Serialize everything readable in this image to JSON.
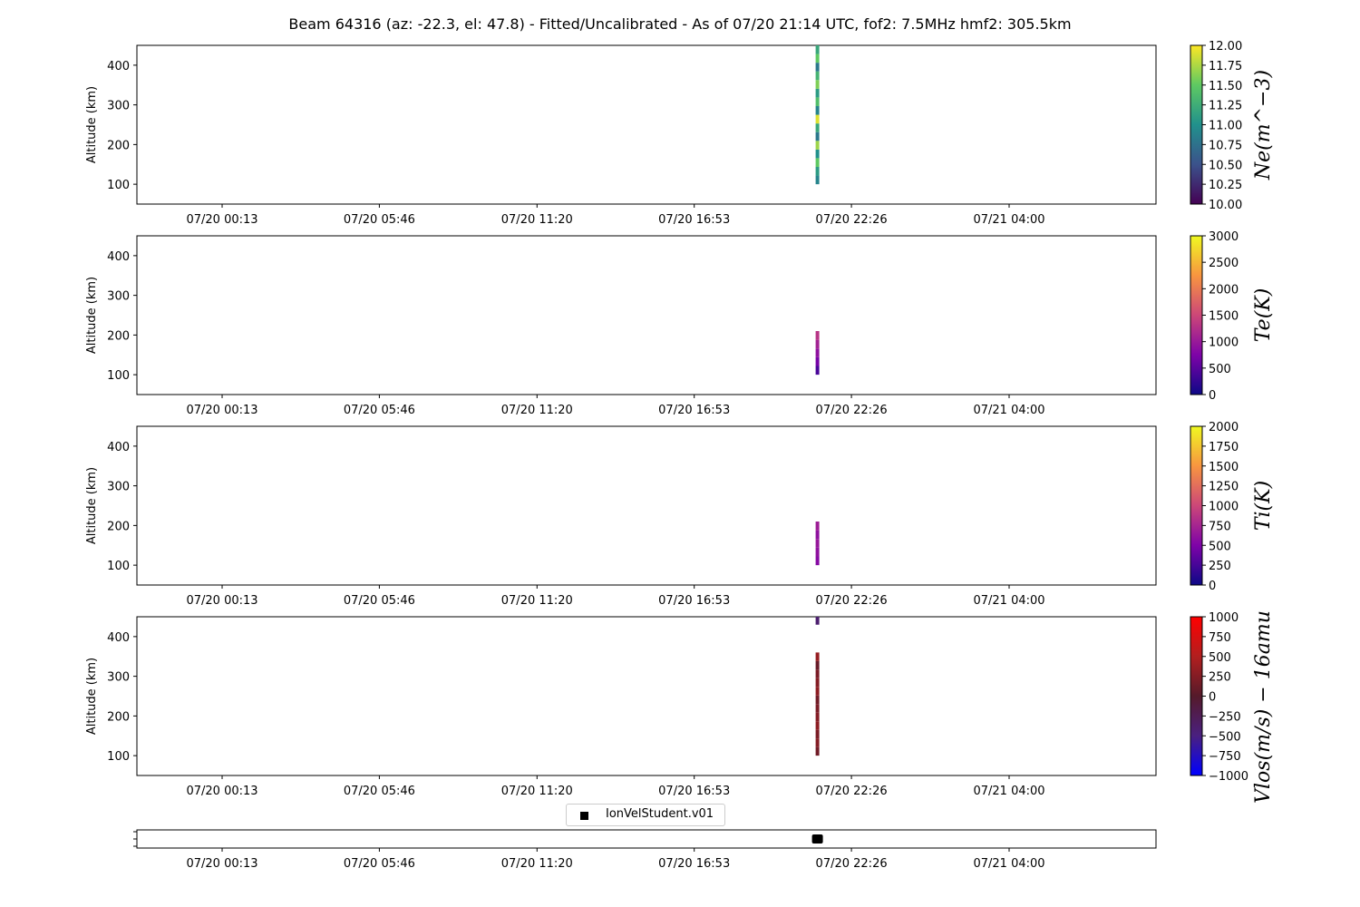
{
  "figure": {
    "title": "Beam 64316 (az: -22.3, el: 47.8) - Fitted/Uncalibrated - As of 07/20 21:14 UTC, fof2: 7.5MHz  hmf2: 305.5km"
  },
  "chart_data": [
    {
      "type": "heatmap",
      "ylabel": "Altitude (km)",
      "yticks": [
        100,
        200,
        300,
        400
      ],
      "ylim": [
        50,
        450
      ],
      "xticks": [
        "07/20 00:13",
        "07/20 05:46",
        "07/20 11:20",
        "07/20 16:53",
        "07/20 22:26",
        "07/21 04:00"
      ],
      "colorbar": {
        "label": "Ne(m^-3)",
        "range": [
          10.0,
          12.0
        ],
        "ticks": [
          "10.00",
          "10.25",
          "10.50",
          "10.75",
          "11.00",
          "11.25",
          "11.50",
          "11.75",
          "12.00"
        ],
        "colors": [
          "#440154",
          "#3b528b",
          "#21918c",
          "#5ec962",
          "#fde725"
        ]
      },
      "data_time": "07/20 21:14",
      "columns": [
        {
          "alt": [
            100,
            450
          ],
          "values": [
            10.9,
            11.1,
            11.5,
            11.0,
            11.7,
            10.8,
            11.2,
            11.9,
            10.9,
            11.4,
            11.1,
            11.6,
            11.3,
            10.8,
            11.5,
            11.2
          ]
        }
      ]
    },
    {
      "type": "heatmap",
      "ylabel": "Altitude (km)",
      "yticks": [
        100,
        200,
        300,
        400
      ],
      "ylim": [
        50,
        450
      ],
      "xticks": [
        "07/20 00:13",
        "07/20 05:46",
        "07/20 11:20",
        "07/20 16:53",
        "07/20 22:26",
        "07/21 04:00"
      ],
      "colorbar": {
        "label": "Te(K)",
        "range": [
          0,
          3000
        ],
        "ticks": [
          "0",
          "500",
          "1000",
          "1500",
          "2000",
          "2500",
          "3000"
        ],
        "colors": [
          "#0d0887",
          "#7e03a8",
          "#cc4778",
          "#f89540",
          "#f0f921"
        ]
      },
      "data_time": "07/20 21:14",
      "columns": [
        {
          "alt": [
            100,
            210
          ],
          "values": [
            400,
            700,
            900,
            1100,
            1300
          ]
        }
      ]
    },
    {
      "type": "heatmap",
      "ylabel": "Altitude (km)",
      "yticks": [
        100,
        200,
        300,
        400
      ],
      "ylim": [
        50,
        450
      ],
      "xticks": [
        "07/20 00:13",
        "07/20 05:46",
        "07/20 11:20",
        "07/20 16:53",
        "07/20 22:26",
        "07/21 04:00"
      ],
      "colorbar": {
        "label": "Ti(K)",
        "range": [
          0,
          2000
        ],
        "ticks": [
          "0",
          "250",
          "500",
          "750",
          "1000",
          "1250",
          "1500",
          "1750",
          "2000"
        ],
        "colors": [
          "#0d0887",
          "#7e03a8",
          "#cc4778",
          "#f89540",
          "#f0f921"
        ]
      },
      "data_time": "07/20 21:14",
      "columns": [
        {
          "alt": [
            100,
            210
          ],
          "values": [
            550,
            600,
            650,
            600,
            700
          ]
        }
      ]
    },
    {
      "type": "heatmap",
      "ylabel": "Altitude (km)",
      "yticks": [
        100,
        200,
        300,
        400
      ],
      "ylim": [
        50,
        450
      ],
      "xticks": [
        "07/20 00:13",
        "07/20 05:46",
        "07/20 11:20",
        "07/20 16:53",
        "07/20 22:26",
        "07/21 04:00"
      ],
      "colorbar": {
        "label": "Vlos(m/s) - 16amu",
        "range": [
          -1000,
          1000
        ],
        "ticks": [
          "-1000",
          "-750",
          "-500",
          "-250",
          "0",
          "250",
          "500",
          "750",
          "1000"
        ],
        "colors": [
          "#0000ff",
          "#4a2080",
          "#551a2a",
          "#b21f1f",
          "#ff0000"
        ]
      },
      "data_time": "07/20 21:14",
      "columns": [
        {
          "alt": [
            100,
            360
          ],
          "values": [
            150,
            250,
            200,
            300,
            250,
            200,
            150,
            300,
            250,
            200,
            100,
            350
          ]
        },
        {
          "alt": [
            430,
            450
          ],
          "values": [
            -400
          ]
        }
      ]
    },
    {
      "type": "scatter",
      "xticks": [
        "07/20 00:13",
        "07/20 05:46",
        "07/20 11:20",
        "07/20 16:53",
        "07/20 22:26",
        "07/21 04:00"
      ],
      "legend": {
        "entries": [
          "IonVelStudent.v01"
        ],
        "placement": "top-center"
      },
      "series": [
        {
          "name": "IonVelStudent.v01",
          "x": [
            "07/20 21:14"
          ],
          "color": "#000000"
        }
      ]
    }
  ]
}
